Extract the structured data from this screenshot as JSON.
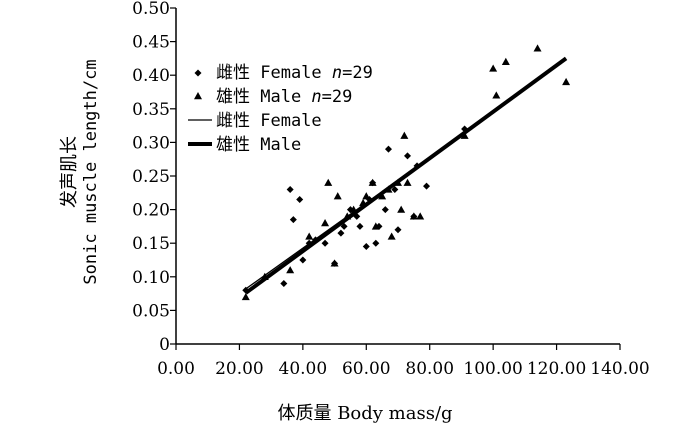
{
  "chart_data": {
    "type": "scatter",
    "xlabel": "体质量 Body mass/g",
    "ylabel_cn": "发声肌长",
    "ylabel_en": "Sonic muscle length/cm",
    "xlim": [
      0,
      140
    ],
    "ylim": [
      0,
      0.5
    ],
    "x_ticks": [
      "0.00",
      "20.00",
      "40.00",
      "60.00",
      "80.00",
      "100.00",
      "120.00",
      "140.00"
    ],
    "y_ticks": [
      "0",
      "0.05",
      "0.10",
      "0.15",
      "0.20",
      "0.25",
      "0.30",
      "0.35",
      "0.40",
      "0.45",
      "0.50"
    ],
    "grid": false,
    "legend_position": "upper-left",
    "legend": [
      {
        "prefix": "雌性 Female ",
        "italic": "n",
        "suffix": "=29",
        "marker": "diamond"
      },
      {
        "prefix": "雄性 Male ",
        "italic": "n",
        "suffix": "=29",
        "marker": "triangle"
      },
      {
        "prefix": "雌性 Female",
        "italic": "",
        "suffix": "",
        "marker": "thin-line"
      },
      {
        "prefix": "雄性 Male",
        "italic": "",
        "suffix": "",
        "marker": "thick-line"
      }
    ],
    "series": [
      {
        "name": "雌性 Female n=29",
        "marker": "diamond",
        "points": [
          [
            22,
            0.08
          ],
          [
            34,
            0.09
          ],
          [
            36,
            0.23
          ],
          [
            37,
            0.185
          ],
          [
            39,
            0.215
          ],
          [
            40,
            0.125
          ],
          [
            42,
            0.15
          ],
          [
            44,
            0.155
          ],
          [
            47,
            0.15
          ],
          [
            50,
            0.12
          ],
          [
            52,
            0.165
          ],
          [
            53,
            0.175
          ],
          [
            55,
            0.2
          ],
          [
            57,
            0.19
          ],
          [
            58,
            0.175
          ],
          [
            60,
            0.145
          ],
          [
            61,
            0.215
          ],
          [
            62,
            0.24
          ],
          [
            63,
            0.15
          ],
          [
            64,
            0.175
          ],
          [
            66,
            0.2
          ],
          [
            67,
            0.29
          ],
          [
            69,
            0.23
          ],
          [
            70,
            0.17
          ],
          [
            73,
            0.28
          ],
          [
            75,
            0.19
          ],
          [
            76,
            0.265
          ],
          [
            79,
            0.235
          ],
          [
            91,
            0.32
          ]
        ]
      },
      {
        "name": "雄性 Male n=29",
        "marker": "triangle",
        "points": [
          [
            22,
            0.07
          ],
          [
            28,
            0.1
          ],
          [
            36,
            0.11
          ],
          [
            42,
            0.16
          ],
          [
            47,
            0.18
          ],
          [
            48,
            0.24
          ],
          [
            50,
            0.12
          ],
          [
            51,
            0.22
          ],
          [
            54,
            0.19
          ],
          [
            56,
            0.2
          ],
          [
            59,
            0.21
          ],
          [
            60,
            0.22
          ],
          [
            62,
            0.24
          ],
          [
            63,
            0.175
          ],
          [
            65,
            0.22
          ],
          [
            67,
            0.23
          ],
          [
            68,
            0.16
          ],
          [
            70,
            0.24
          ],
          [
            71,
            0.2
          ],
          [
            72,
            0.31
          ],
          [
            73,
            0.24
          ],
          [
            75,
            0.19
          ],
          [
            77,
            0.19
          ],
          [
            91,
            0.31
          ],
          [
            100,
            0.41
          ],
          [
            101,
            0.37
          ],
          [
            104,
            0.42
          ],
          [
            114,
            0.44
          ],
          [
            123,
            0.39
          ]
        ]
      },
      {
        "name": "雌性 Female",
        "type": "line",
        "style": "thin",
        "x": [
          22,
          98
        ],
        "y": [
          0.082,
          0.338
        ]
      },
      {
        "name": "雄性 Male",
        "type": "line",
        "style": "thick",
        "x": [
          22,
          123
        ],
        "y": [
          0.076,
          0.425
        ]
      }
    ]
  }
}
